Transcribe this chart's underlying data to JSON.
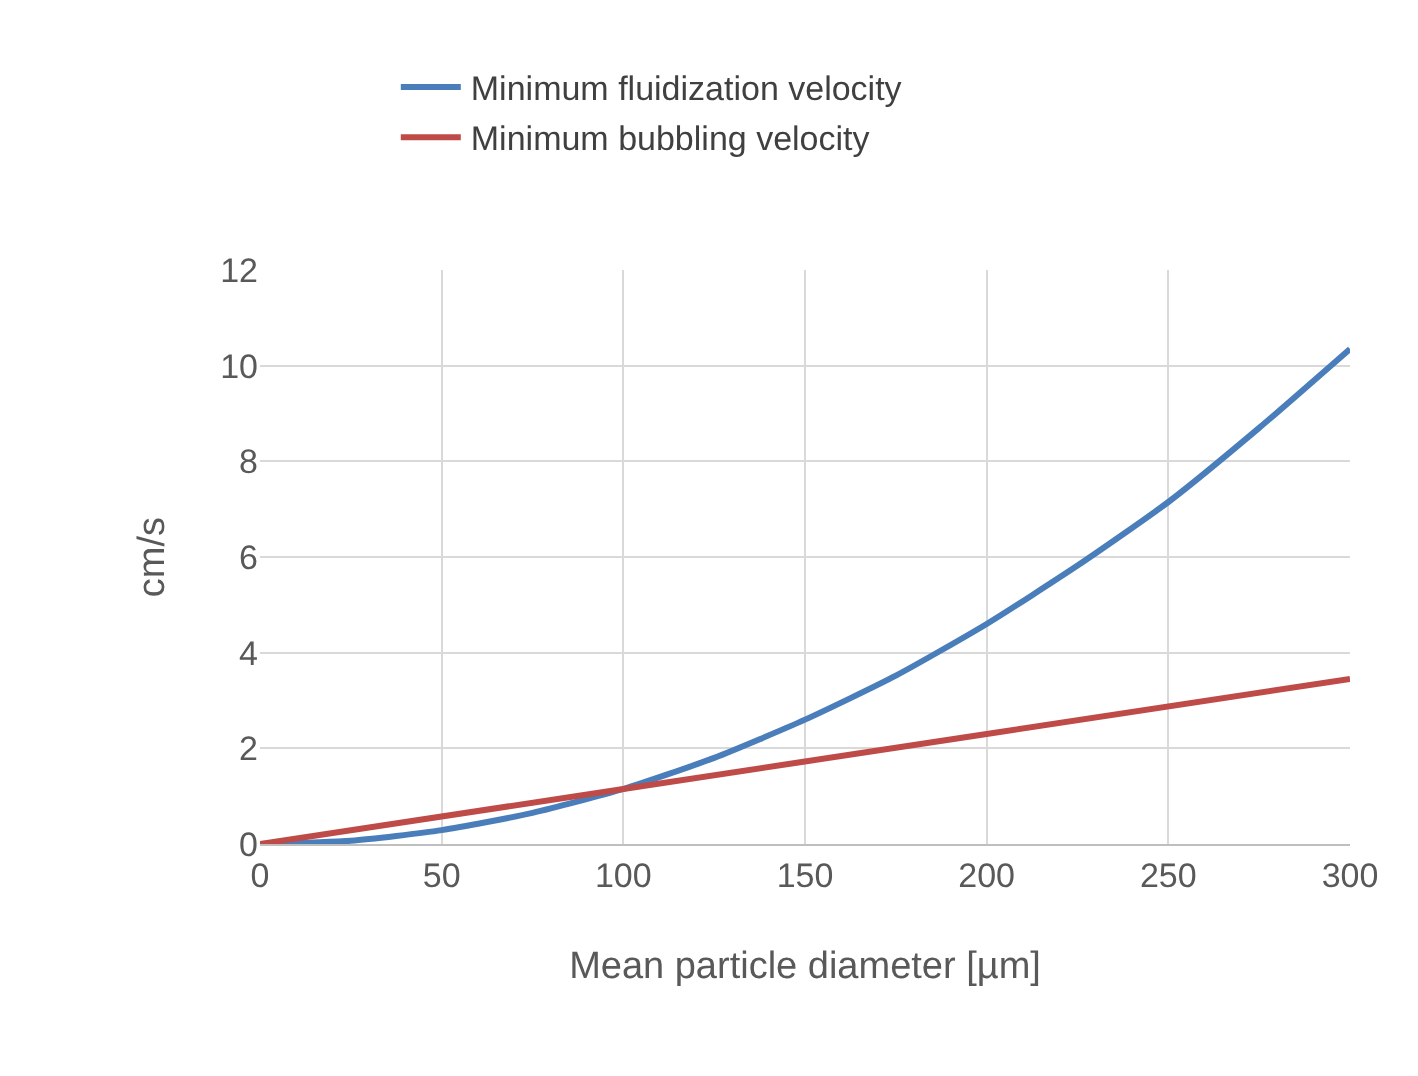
{
  "chart_data": {
    "type": "line",
    "xlabel": "Mean particle diameter [µm]",
    "ylabel": "cm/s",
    "xlim": [
      0,
      300
    ],
    "xticks": [
      0,
      50,
      100,
      150,
      200,
      250,
      300
    ],
    "ylim": [
      0,
      12
    ],
    "yticks": [
      0,
      2,
      4,
      6,
      8,
      10,
      12
    ],
    "grid": true,
    "legend": "top",
    "marker": "none",
    "line_style": "solid",
    "series": [
      {
        "name": "Minimum fluidization velocity",
        "color": "#4a7ebb",
        "x": [
          0,
          25,
          50,
          75,
          100,
          125,
          150,
          175,
          200,
          225,
          250,
          275,
          300
        ],
        "values": [
          0,
          0.07,
          0.29,
          0.65,
          1.15,
          1.8,
          2.6,
          3.52,
          4.6,
          5.82,
          7.15,
          8.7,
          10.35
        ]
      },
      {
        "name": "Minimum bubbling velocity",
        "color": "#be4b48",
        "x": [
          0,
          100,
          200,
          300
        ],
        "values": [
          0,
          1.15,
          2.3,
          3.45
        ]
      }
    ]
  }
}
